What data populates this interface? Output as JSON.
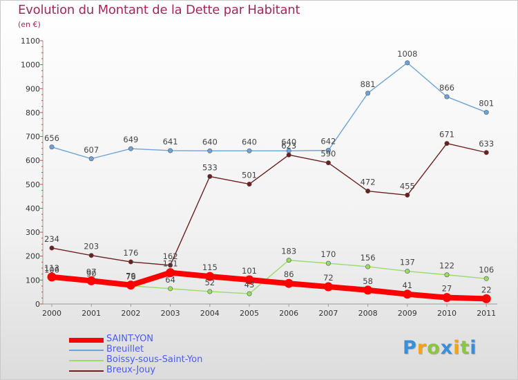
{
  "header": {
    "title": "Evolution du Montant de la Dette par Habitant",
    "unit": "(en €)"
  },
  "chart_data": {
    "type": "line",
    "title": "Evolution du Montant de la Dette par Habitant",
    "subtitle": "(en €)",
    "xlabel": "",
    "ylabel": "",
    "ylim": [
      0,
      1100
    ],
    "yticks": [
      0,
      100,
      200,
      300,
      400,
      500,
      600,
      700,
      800,
      900,
      1000,
      1100
    ],
    "grid": false,
    "legend_position": "bottom-left",
    "categories": [
      "2000",
      "2001",
      "2002",
      "2003",
      "2004",
      "2005",
      "2006",
      "2007",
      "2008",
      "2009",
      "2010",
      "2011"
    ],
    "series": [
      {
        "name": "Breuillet",
        "color": "#6fa3d6",
        "values": [
          656,
          607,
          649,
          641,
          640,
          640,
          640,
          642,
          881,
          1008,
          866,
          801
        ]
      },
      {
        "name": "Boissy-sous-Saint-Yon",
        "color": "#99dd66",
        "values": [
          106,
          90,
          76,
          64,
          52,
          43,
          183,
          170,
          156,
          137,
          122,
          106
        ]
      },
      {
        "name": "Breux-Jouy",
        "color": "#6b1f1f",
        "values": [
          234,
          203,
          176,
          162,
          533,
          501,
          623,
          590,
          472,
          455,
          671,
          633
        ]
      },
      {
        "name": "SAINT-YON",
        "color": "#ff0000",
        "values": [
          113,
          97,
          79,
          131,
          115,
          101,
          86,
          72,
          58,
          41,
          27,
          22
        ]
      }
    ],
    "legend": [
      "SAINT-YON",
      "Breuillet",
      "Boissy-sous-Saint-Yon",
      "Breux-Jouy"
    ]
  },
  "logo": {
    "letters": [
      "P",
      "r",
      "o",
      "x",
      "i",
      "t",
      "i"
    ],
    "colors": [
      "#3b8fd9",
      "#f2a31a",
      "#8cc63f",
      "#3b8fd9",
      "#f2a31a",
      "#8cc63f",
      "#3b8fd9"
    ]
  }
}
